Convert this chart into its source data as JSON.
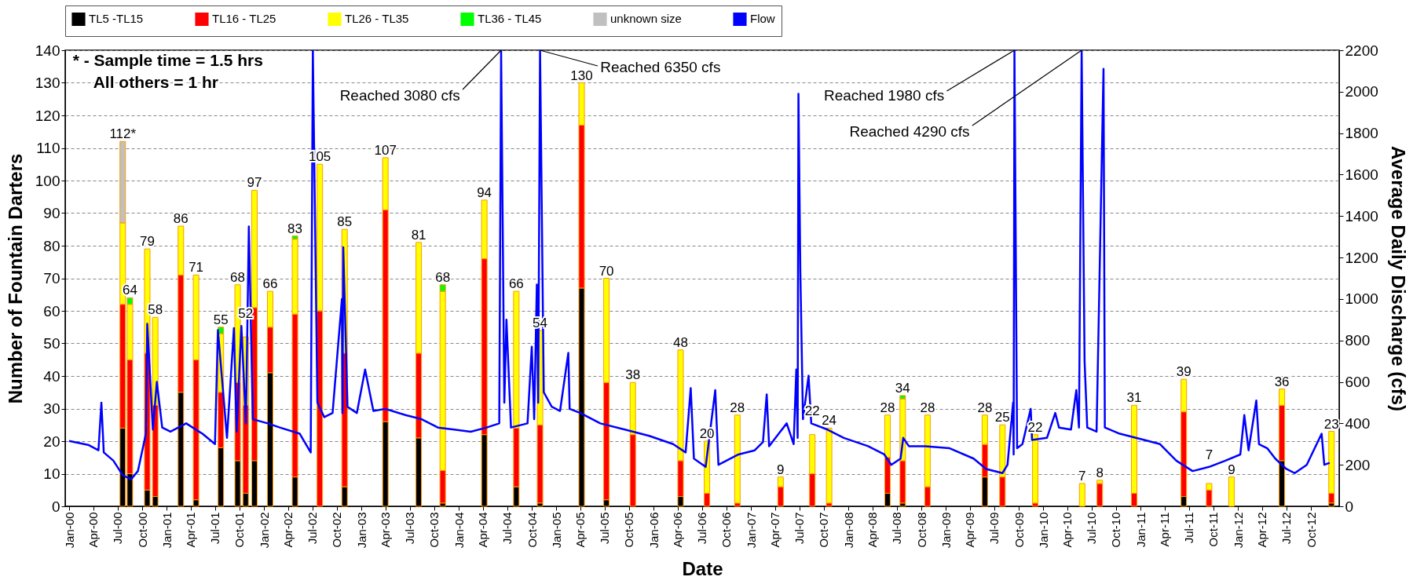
{
  "chart_data": {
    "type": "bar",
    "stacked": true,
    "xlabel": "Date",
    "ylabel": "Number of Fountain Darters",
    "y2label": "Average Daily Discharge (cfs)",
    "legend": "top",
    "grid": "y",
    "x": [
      "2000-07-20",
      "2000-08-16",
      "2000-10-20",
      "2000-11-19",
      "2001-02-23",
      "2001-04-21",
      "2001-07-23",
      "2001-09-24",
      "2001-10-24",
      "2001-11-26",
      "2002-01-24",
      "2002-04-27",
      "2002-07-29",
      "2002-10-30",
      "2003-04-01",
      "2003-08-04",
      "2003-11-02",
      "2004-04-06",
      "2004-08-04",
      "2004-11-01",
      "2005-04-06",
      "2005-07-08",
      "2005-10-15",
      "2006-04-12",
      "2006-07-20",
      "2006-11-11",
      "2007-04-22",
      "2007-08-19",
      "2007-10-21",
      "2008-05-27",
      "2008-07-23",
      "2008-10-24",
      "2009-05-27",
      "2009-08-01",
      "2009-12-02",
      "2010-05-27",
      "2010-08-01",
      "2010-12-08",
      "2011-06-12",
      "2011-09-15",
      "2011-12-08",
      "2012-06-14",
      "2012-12-17"
    ],
    "series": [
      {
        "name": "TL5 -TL15",
        "color": "#000000",
        "values": [
          24,
          10,
          5,
          3,
          35,
          2,
          18,
          14,
          4,
          14,
          41,
          9,
          null,
          6,
          26,
          21,
          1,
          22,
          6,
          1,
          67,
          2,
          null,
          3,
          null,
          null,
          null,
          null,
          null,
          4,
          1,
          null,
          9,
          null,
          null,
          null,
          null,
          null,
          3,
          null,
          null,
          14,
          1
        ]
      },
      {
        "name": "TL16 - TL25",
        "color": "#ff0000",
        "values": [
          38,
          35,
          42,
          28,
          36,
          43,
          17,
          24,
          27,
          47,
          14,
          50,
          60,
          41,
          65,
          26,
          10,
          54,
          18,
          24,
          50,
          36,
          22,
          11,
          4,
          1,
          6,
          10,
          1,
          11,
          13,
          6,
          10,
          9,
          1,
          null,
          7,
          4,
          26,
          5,
          null,
          17,
          3
        ]
      },
      {
        "name": "TL26 - TL35",
        "color": "#ffff00",
        "values": [
          25,
          17,
          32,
          27,
          15,
          26,
          18,
          30,
          21,
          36,
          11,
          23,
          45,
          38,
          16,
          34,
          55,
          18,
          42,
          29,
          13,
          32,
          16,
          34,
          16,
          27,
          3,
          12,
          23,
          13,
          19,
          22,
          9,
          16,
          21,
          7,
          1,
          27,
          10,
          2,
          9,
          5,
          19
        ]
      },
      {
        "name": "TL36 - TL45",
        "color": "#00ff00",
        "values": [
          null,
          2,
          null,
          null,
          null,
          null,
          2,
          null,
          null,
          null,
          null,
          1,
          null,
          null,
          null,
          null,
          2,
          null,
          null,
          null,
          null,
          null,
          null,
          null,
          null,
          null,
          null,
          null,
          null,
          null,
          1,
          null,
          null,
          null,
          null,
          null,
          null,
          null,
          null,
          null,
          null,
          null,
          null
        ]
      },
      {
        "name": "unknown size",
        "color": "#c0c0c0",
        "values": [
          25,
          null,
          null,
          null,
          null,
          null,
          null,
          null,
          null,
          null,
          null,
          null,
          null,
          null,
          null,
          null,
          null,
          null,
          null,
          null,
          null,
          null,
          null,
          null,
          null,
          null,
          null,
          null,
          null,
          null,
          null,
          null,
          null,
          null,
          null,
          null,
          null,
          null,
          null,
          null,
          null,
          null,
          null
        ]
      },
      {
        "name": "Flow",
        "type": "line",
        "axis": "y2",
        "color": "#0000ff",
        "x": [
          "2000-01-01",
          "2000-03-15",
          "2000-04-20",
          "2000-05-01",
          "2000-05-10",
          "2000-06-15",
          "2000-07-20",
          "2000-08-20",
          "2000-09-15",
          "2000-10-15",
          "2000-10-20",
          "2000-11-10",
          "2000-11-25",
          "2000-12-15",
          "2001-01-15",
          "2001-03-15",
          "2001-05-15",
          "2001-07-01",
          "2001-07-12",
          "2001-08-15",
          "2001-09-10",
          "2001-09-20",
          "2001-10-08",
          "2001-10-25",
          "2001-11-05",
          "2001-11-20",
          "2002-01-15",
          "2002-03-01",
          "2002-05-15",
          "2002-06-25",
          "2002-07-03",
          "2002-07-20",
          "2002-08-15",
          "2002-09-15",
          "2002-10-20",
          "2002-10-22",
          "2002-10-25",
          "2002-11-10",
          "2002-12-15",
          "2003-01-15",
          "2003-02-15",
          "2003-04-01",
          "2003-06-15",
          "2003-08-15",
          "2003-10-15",
          "2003-12-15",
          "2004-02-15",
          "2004-04-15",
          "2004-06-01",
          "2004-06-08",
          "2004-06-20",
          "2004-06-28",
          "2004-07-15",
          "2004-09-15",
          "2004-10-01",
          "2004-10-10",
          "2004-10-20",
          "2004-10-25",
          "2004-11-01",
          "2004-11-15",
          "2004-12-15",
          "2005-01-15",
          "2005-02-15",
          "2005-02-20",
          "2005-04-01",
          "2005-06-15",
          "2005-09-15",
          "2005-12-15",
          "2006-03-15",
          "2006-05-01",
          "2006-05-20",
          "2006-06-01",
          "2006-07-15",
          "2006-08-20",
          "2006-09-01",
          "2006-11-15",
          "2007-01-15",
          "2007-02-15",
          "2007-03-01",
          "2007-03-10",
          "2007-04-15",
          "2007-05-15",
          "2007-06-10",
          "2007-06-20",
          "2007-06-25",
          "2007-06-28",
          "2007-07-05",
          "2007-07-15",
          "2007-08-05",
          "2007-08-15",
          "2007-10-15",
          "2007-12-15",
          "2008-03-15",
          "2008-05-15",
          "2008-06-10",
          "2008-07-15",
          "2008-07-25",
          "2008-08-15",
          "2008-10-15",
          "2009-01-15",
          "2009-04-15",
          "2009-06-01",
          "2009-08-01",
          "2009-08-20",
          "2009-09-10",
          "2009-09-12",
          "2009-09-15",
          "2009-09-25",
          "2009-10-15",
          "2009-11-15",
          "2009-11-20",
          "2010-01-15",
          "2010-02-15",
          "2010-03-01",
          "2010-04-15",
          "2010-05-05",
          "2010-05-15",
          "2010-05-25",
          "2010-06-05",
          "2010-06-15",
          "2010-07-20",
          "2010-08-15",
          "2010-08-20",
          "2010-10-15",
          "2011-01-15",
          "2011-03-15",
          "2011-05-15",
          "2011-07-15",
          "2011-09-15",
          "2011-11-15",
          "2012-01-10",
          "2012-01-25",
          "2012-02-10",
          "2012-03-10",
          "2012-03-20",
          "2012-04-20",
          "2012-05-20",
          "2012-07-01",
          "2012-08-01",
          "2012-09-15",
          "2012-11-10",
          "2012-11-20",
          "2012-12-10"
        ],
        "values": [
          315,
          295,
          270,
          500,
          260,
          220,
          150,
          130,
          170,
          350,
          880,
          370,
          600,
          380,
          360,
          400,
          350,
          300,
          850,
          330,
          860,
          360,
          870,
          400,
          1350,
          420,
          400,
          380,
          350,
          260,
          2200,
          500,
          430,
          450,
          1000,
          450,
          1250,
          480,
          450,
          660,
          460,
          470,
          440,
          420,
          380,
          370,
          360,
          380,
          400,
          2200,
          500,
          900,
          380,
          400,
          770,
          420,
          1070,
          500,
          2200,
          550,
          480,
          460,
          740,
          470,
          450,
          400,
          370,
          340,
          300,
          260,
          570,
          230,
          190,
          560,
          200,
          250,
          270,
          310,
          540,
          290,
          350,
          400,
          300,
          660,
          330,
          1990,
          1140,
          420,
          630,
          400,
          370,
          330,
          290,
          250,
          200,
          230,
          330,
          290,
          290,
          280,
          230,
          180,
          160,
          200,
          500,
          250,
          2200,
          280,
          300,
          470,
          320,
          330,
          450,
          380,
          370,
          560,
          380,
          2200,
          700,
          380,
          360,
          2110,
          380,
          350,
          320,
          300,
          220,
          170,
          190,
          220,
          250,
          440,
          270,
          510,
          300,
          280,
          230,
          180,
          160,
          200,
          350,
          200,
          210
        ]
      }
    ],
    "totals": [
      "112*",
      "64",
      "79",
      "58",
      "86",
      "71",
      "55",
      "68",
      "52",
      "97",
      "66",
      "83",
      "105",
      "85",
      "107",
      "81",
      "68",
      "94",
      "66",
      "54",
      "130",
      "70",
      "38",
      "48",
      "20",
      "28",
      "9",
      "22",
      "24",
      "28",
      "34",
      "28",
      "28",
      "25",
      "22",
      "7",
      "8",
      "31",
      "39",
      "7",
      "9",
      "36",
      "23"
    ],
    "xlim": [
      "2000-01-01",
      "2012-12-31"
    ],
    "xticks": [
      {
        "value": "2000-01",
        "label": "Jan-00"
      },
      {
        "value": "2000-04",
        "label": "Apr-00"
      },
      {
        "value": "2000-07",
        "label": "Jul-00"
      },
      {
        "value": "2000-10",
        "label": "Oct-00"
      },
      {
        "value": "2001-01",
        "label": "Jan-01"
      },
      {
        "value": "2001-04",
        "label": "Apr-01"
      },
      {
        "value": "2001-07",
        "label": "Jul-01"
      },
      {
        "value": "2001-10",
        "label": "Oct-01"
      },
      {
        "value": "2002-01",
        "label": "Jan-02"
      },
      {
        "value": "2002-04",
        "label": "Apr-02"
      },
      {
        "value": "2002-07",
        "label": "Jul-02"
      },
      {
        "value": "2002-10",
        "label": "Oct-02"
      },
      {
        "value": "2003-01",
        "label": "Jan-03"
      },
      {
        "value": "2003-04",
        "label": "Apr-03"
      },
      {
        "value": "2003-07",
        "label": "Jul-03"
      },
      {
        "value": "2003-10",
        "label": "Oct-03"
      },
      {
        "value": "2004-01",
        "label": "Jan-04"
      },
      {
        "value": "2004-04",
        "label": "Apr-04"
      },
      {
        "value": "2004-07",
        "label": "Jul-04"
      },
      {
        "value": "2004-10",
        "label": "Oct-04"
      },
      {
        "value": "2005-01",
        "label": "Jan-05"
      },
      {
        "value": "2005-04",
        "label": "Apr-05"
      },
      {
        "value": "2005-07",
        "label": "Jul-05"
      },
      {
        "value": "2005-10",
        "label": "Oct-05"
      },
      {
        "value": "2006-01",
        "label": "Jan-06"
      },
      {
        "value": "2006-04",
        "label": "Apr-06"
      },
      {
        "value": "2006-07",
        "label": "Jul-06"
      },
      {
        "value": "2006-10",
        "label": "Oct-06"
      },
      {
        "value": "2007-01",
        "label": "Jan-07"
      },
      {
        "value": "2007-04",
        "label": "Apr-07"
      },
      {
        "value": "2007-07",
        "label": "Jul-07"
      },
      {
        "value": "2007-10",
        "label": "Oct-07"
      },
      {
        "value": "2008-01",
        "label": "Jan-08"
      },
      {
        "value": "2008-04",
        "label": "Apr-08"
      },
      {
        "value": "2008-07",
        "label": "Jul-08"
      },
      {
        "value": "2008-10",
        "label": "Oct-08"
      },
      {
        "value": "2009-01",
        "label": "Jan-09"
      },
      {
        "value": "2009-04",
        "label": "Apr-09"
      },
      {
        "value": "2009-07",
        "label": "Jul-09"
      },
      {
        "value": "2009-10",
        "label": "Oct-09"
      },
      {
        "value": "2010-01",
        "label": "Jan-10"
      },
      {
        "value": "2010-04",
        "label": "Apr-10"
      },
      {
        "value": "2010-07",
        "label": "Jul-10"
      },
      {
        "value": "2010-10",
        "label": "Oct-10"
      },
      {
        "value": "2011-01",
        "label": "Jan-11"
      },
      {
        "value": "2011-04",
        "label": "Apr-11"
      },
      {
        "value": "2011-07",
        "label": "Jul-11"
      },
      {
        "value": "2011-10",
        "label": "Oct-11"
      },
      {
        "value": "2012-01",
        "label": "Jan-12"
      },
      {
        "value": "2012-04",
        "label": "Apr-12"
      },
      {
        "value": "2012-07",
        "label": "Jul-12"
      },
      {
        "value": "2012-10",
        "label": "Oct-12"
      }
    ],
    "ylim": [
      0,
      140
    ],
    "yticks": [
      0,
      10,
      20,
      30,
      40,
      50,
      60,
      70,
      80,
      90,
      100,
      110,
      120,
      130,
      140
    ],
    "y2lim": [
      0,
      2200
    ],
    "y2ticks": [
      0,
      200,
      400,
      600,
      800,
      1000,
      1200,
      1400,
      1600,
      1800,
      2000,
      2200
    ],
    "annotations": [
      "* - Sample time = 1.5 hrs",
      "All others = 1 hr",
      {
        "text": "Reached 3080 cfs",
        "x": "2004-06-08",
        "y": 140
      },
      {
        "text": "Reached 6350 cfs",
        "x": "2004-11-01",
        "y": 140
      },
      {
        "text": "Reached 1980 cfs",
        "x": "2009-09-15",
        "y": 140
      },
      {
        "text": "Reached 4290 cfs",
        "x": "2010-05-25",
        "y": 140
      }
    ]
  }
}
